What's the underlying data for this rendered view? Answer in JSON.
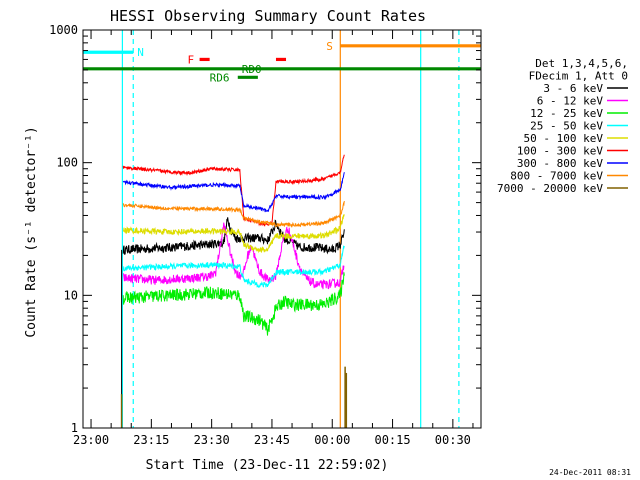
{
  "chart_data": {
    "type": "line",
    "title": "HESSI Observing Summary Count Rates",
    "xlabel": "Start Time (23-Dec-11 22:59:02)",
    "ylabel": "Count Rate (s⁻¹ detector⁻¹)",
    "y_scale": "log",
    "ylim": [
      1,
      1000
    ],
    "xlim": [
      -2,
      97
    ],
    "x_unit": "minutes after 23:00",
    "x_ticks": [
      {
        "value": 0,
        "label": "23:00"
      },
      {
        "value": 15,
        "label": "23:15"
      },
      {
        "value": 30,
        "label": "23:30"
      },
      {
        "value": 45,
        "label": "23:45"
      },
      {
        "value": 60,
        "label": "00:00"
      },
      {
        "value": 75,
        "label": "00:15"
      },
      {
        "value": 90,
        "label": "00:30"
      }
    ],
    "y_ticks": [
      {
        "value": 1,
        "label": "1"
      },
      {
        "value": 10,
        "label": "10"
      },
      {
        "value": 100,
        "label": "100"
      },
      {
        "value": 1000,
        "label": "1000"
      }
    ],
    "legend_header": [
      "Det 1,3,4,5,6,",
      "FDecim 1, Att 0"
    ],
    "legend_placement": "right",
    "series": [
      {
        "name": "3 - 6 keV",
        "color": "#000000",
        "noise": 0.08,
        "x": [
          8,
          20,
          28,
          33,
          34,
          35,
          36,
          39,
          42,
          44,
          46,
          48,
          50,
          51,
          52,
          56,
          60,
          62,
          63
        ],
        "y": [
          22,
          23,
          24,
          25,
          38,
          30,
          27,
          27,
          27,
          26,
          35,
          27,
          25,
          24,
          23,
          23,
          22,
          24,
          30
        ]
      },
      {
        "name": "6 - 12 keV",
        "color": "#ff00ff",
        "noise": 0.08,
        "x": [
          8,
          16,
          25,
          30,
          31,
          32,
          33,
          34,
          35,
          36,
          37,
          38,
          39,
          40,
          41,
          42,
          44,
          46,
          47,
          48,
          49,
          50,
          51,
          52,
          53,
          54,
          55,
          56,
          57,
          58,
          62,
          63
        ],
        "y": [
          13.5,
          13,
          13.5,
          14,
          15,
          22,
          34,
          26,
          19,
          15,
          14,
          15,
          20,
          24,
          18,
          15,
          13,
          14,
          20,
          28,
          32,
          26,
          20,
          16,
          14,
          13,
          12.5,
          12,
          12,
          12,
          12.5,
          18
        ]
      },
      {
        "name": "12 - 25 keV",
        "color": "#00ee00",
        "noise": 0.11,
        "x": [
          8,
          20,
          30,
          37,
          38,
          42,
          44,
          46,
          48,
          50,
          52,
          58,
          62,
          63
        ],
        "y": [
          9.5,
          10,
          10.5,
          10,
          7,
          6.5,
          5.5,
          8,
          9,
          8.5,
          8.5,
          8.5,
          10,
          15
        ]
      },
      {
        "name": "25 - 50 keV",
        "color": "#00ffff",
        "noise": 0.05,
        "x": [
          8,
          20,
          30,
          37,
          38,
          42,
          44,
          46,
          52,
          58,
          62,
          63
        ],
        "y": [
          16,
          16.5,
          17,
          16.5,
          13,
          12,
          12,
          15,
          15,
          15,
          17,
          24
        ]
      },
      {
        "name": "50 - 100 keV",
        "color": "#dddd00",
        "noise": 0.05,
        "x": [
          8,
          20,
          30,
          37,
          38,
          42,
          44,
          46,
          52,
          58,
          62,
          63
        ],
        "y": [
          31,
          30,
          30.5,
          30,
          24,
          22,
          22,
          28,
          28,
          28,
          32,
          42
        ]
      },
      {
        "name": "100 - 300 keV",
        "color": "#ff0000",
        "noise": 0.03,
        "x": [
          8,
          20,
          25,
          30,
          37,
          38,
          42,
          44,
          45,
          46,
          52,
          58,
          62,
          63
        ],
        "y": [
          92,
          85,
          84,
          90,
          88,
          38,
          35,
          34,
          35,
          72,
          72,
          75,
          85,
          118
        ]
      },
      {
        "name": "300 - 800 keV",
        "color": "#0000ff",
        "noise": 0.03,
        "x": [
          8,
          20,
          30,
          37,
          38,
          42,
          44,
          46,
          52,
          58,
          62,
          63
        ],
        "y": [
          71,
          65,
          68,
          67,
          47,
          45,
          43,
          56,
          55,
          55,
          62,
          85
        ]
      },
      {
        "name": "800 - 7000 keV",
        "color": "#ff8800",
        "noise": 0.03,
        "x": [
          8,
          20,
          30,
          37,
          38,
          42,
          44,
          46,
          52,
          58,
          62,
          63
        ],
        "y": [
          48,
          45,
          45,
          44,
          38,
          36,
          35,
          34,
          34,
          35,
          40,
          50
        ]
      },
      {
        "name": "7000 - 20000 keV",
        "color": "#806000",
        "noise": 0,
        "x": [],
        "y": []
      }
    ],
    "flags": [
      {
        "label": "N",
        "color": "#00ffff",
        "level": 680,
        "x_start": -2,
        "x_end": 10.5,
        "label_x": 11.5
      },
      {
        "label": "S",
        "color": "#ff8800",
        "level": 760,
        "x_start": 62,
        "x_end": 97,
        "label_x": 58.5
      },
      {
        "label": "F",
        "color": "#ff0000",
        "level": 600,
        "segments": [
          [
            27,
            29.5
          ],
          [
            46,
            48.5
          ]
        ],
        "label_x": 24
      },
      {
        "label": "RD0",
        "color": "#008800",
        "level": 510,
        "segments": [
          [
            -2,
            97
          ]
        ],
        "label_x": 37.5
      },
      {
        "label": "RD6",
        "color": "#008800",
        "level": 440,
        "segments": [
          [
            36.5,
            41.5
          ]
        ],
        "label_x": 29.5
      }
    ],
    "vlines": [
      {
        "x": 7.8,
        "color": "#00ffff",
        "style": "solid"
      },
      {
        "x": 10.5,
        "color": "#00ffff",
        "style": "dashed"
      },
      {
        "x": 62,
        "color": "#ff8800",
        "style": "solid"
      },
      {
        "x": 82,
        "color": "#00ffff",
        "style": "solid"
      },
      {
        "x": 91.5,
        "color": "#00ffff",
        "style": "dashed"
      }
    ],
    "black_vline_x": 7.6,
    "spikes": [
      {
        "x": 7.6,
        "color": "#806000",
        "ymin": 1,
        "ymax": 1.8
      },
      {
        "x": 63.2,
        "color": "#806000",
        "ymin": 1,
        "ymax": 2.9
      },
      {
        "x": 63.5,
        "color": "#806000",
        "ymin": 1,
        "ymax": 2.6
      }
    ],
    "timestamp": "24-Dec-2011 08:31"
  }
}
